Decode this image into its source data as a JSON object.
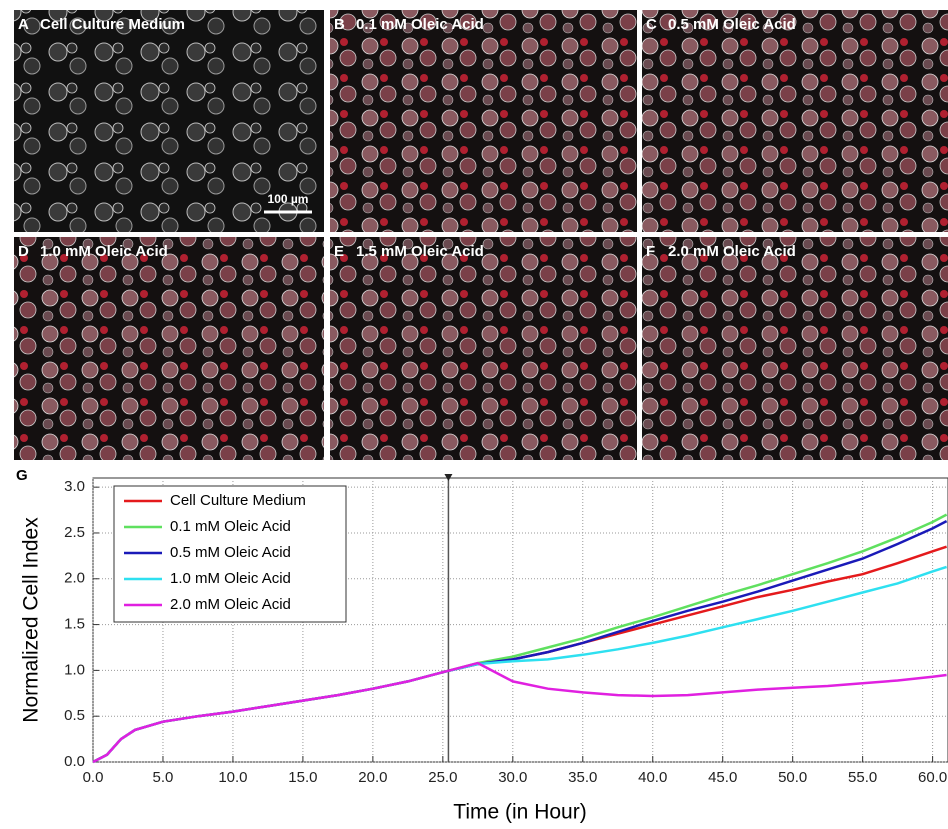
{
  "panels": [
    {
      "letter": "A",
      "label": "Cell Culture Medium"
    },
    {
      "letter": "B",
      "label": "0.1 mM Oleic Acid"
    },
    {
      "letter": "C",
      "label": "0.5 mM Oleic Acid"
    },
    {
      "letter": "D",
      "label": "1.0 mM Oleic Acid"
    },
    {
      "letter": "E",
      "label": "1.5 mM Oleic Acid"
    },
    {
      "letter": "F",
      "label": "2.0 mM Oleic Acid"
    }
  ],
  "scale_bar": "100 µm",
  "chart_data": {
    "type": "line",
    "panel_letter": "G",
    "x_label": "Time (in Hour)",
    "y_label": "Normalized Cell Index",
    "xlim": [
      0,
      61.1
    ],
    "ylim": [
      0,
      3.1
    ],
    "xticks": [
      {
        "value": 0,
        "label": "0.0"
      },
      {
        "value": 5,
        "label": "5.0"
      },
      {
        "value": 10,
        "label": "10.0"
      },
      {
        "value": 15,
        "label": "15.0"
      },
      {
        "value": 20,
        "label": "20.0"
      },
      {
        "value": 25,
        "label": "25.0"
      },
      {
        "value": 30,
        "label": "30.0"
      },
      {
        "value": 35,
        "label": "35.0"
      },
      {
        "value": 40,
        "label": "40.0"
      },
      {
        "value": 45,
        "label": "45.0"
      },
      {
        "value": 50,
        "label": "50.0"
      },
      {
        "value": 55,
        "label": "55.0"
      },
      {
        "value": 60,
        "label": "60.0"
      }
    ],
    "yticks": [
      {
        "value": 0,
        "label": "0.0"
      },
      {
        "value": 0.5,
        "label": "0.5"
      },
      {
        "value": 1,
        "label": "1.0"
      },
      {
        "value": 1.5,
        "label": "1.5"
      },
      {
        "value": 2,
        "label": "2.0"
      },
      {
        "value": 2.5,
        "label": "2.5"
      },
      {
        "value": 3,
        "label": "3.0"
      }
    ],
    "grid": true,
    "legend": "upper-left",
    "vline": 25.4,
    "x": [
      0,
      1,
      2,
      3,
      5,
      7.5,
      10,
      12.5,
      15,
      17.5,
      20,
      22.5,
      25,
      27.5,
      30,
      32.5,
      35,
      37.5,
      40,
      42.5,
      45,
      47.5,
      50,
      52.5,
      55,
      57.5,
      60,
      61
    ],
    "series": [
      {
        "name": "Cell Culture Medium",
        "color": "#e41a1c",
        "values": [
          0,
          0.08,
          0.25,
          0.35,
          0.44,
          0.5,
          0.55,
          0.61,
          0.67,
          0.73,
          0.8,
          0.88,
          0.98,
          1.07,
          1.12,
          1.2,
          1.3,
          1.4,
          1.5,
          1.6,
          1.7,
          1.8,
          1.88,
          1.97,
          2.05,
          2.17,
          2.3,
          2.35
        ]
      },
      {
        "name": "0.1 mM Oleic Acid",
        "color": "#5fe05f",
        "values": [
          0,
          0.08,
          0.25,
          0.35,
          0.44,
          0.5,
          0.55,
          0.61,
          0.67,
          0.73,
          0.8,
          0.88,
          0.98,
          1.08,
          1.15,
          1.25,
          1.35,
          1.47,
          1.58,
          1.7,
          1.82,
          1.93,
          2.05,
          2.17,
          2.3,
          2.45,
          2.62,
          2.7
        ]
      },
      {
        "name": "0.5 mM Oleic Acid",
        "color": "#1a1ab8",
        "values": [
          0,
          0.08,
          0.25,
          0.35,
          0.44,
          0.5,
          0.55,
          0.61,
          0.67,
          0.73,
          0.8,
          0.88,
          0.98,
          1.07,
          1.12,
          1.2,
          1.3,
          1.42,
          1.54,
          1.65,
          1.75,
          1.86,
          1.98,
          2.1,
          2.22,
          2.38,
          2.55,
          2.63
        ]
      },
      {
        "name": "1.0 mM Oleic Acid",
        "color": "#2ee0f0",
        "values": [
          0,
          0.08,
          0.25,
          0.35,
          0.44,
          0.5,
          0.55,
          0.61,
          0.67,
          0.73,
          0.8,
          0.88,
          0.98,
          1.07,
          1.1,
          1.12,
          1.17,
          1.23,
          1.3,
          1.38,
          1.47,
          1.56,
          1.65,
          1.75,
          1.85,
          1.95,
          2.08,
          2.13
        ]
      },
      {
        "name": "2.0 mM Oleic Acid",
        "color": "#e020e0",
        "values": [
          0,
          0.08,
          0.25,
          0.35,
          0.44,
          0.5,
          0.55,
          0.61,
          0.67,
          0.73,
          0.8,
          0.88,
          0.98,
          1.08,
          0.88,
          0.8,
          0.76,
          0.73,
          0.72,
          0.73,
          0.76,
          0.79,
          0.81,
          0.83,
          0.86,
          0.89,
          0.93,
          0.95
        ]
      }
    ]
  }
}
